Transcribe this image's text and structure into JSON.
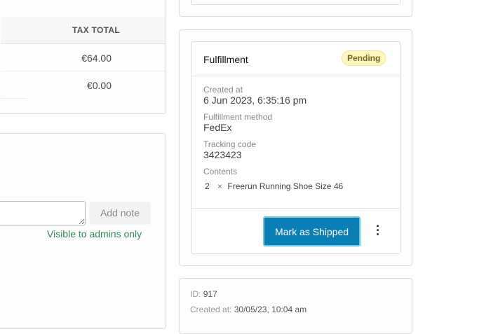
{
  "table": {
    "header_tax_total": "TAX TOTAL",
    "rows": [
      {
        "tax_total": "€64.00"
      },
      {
        "tax_total": "€0.00"
      }
    ]
  },
  "notes": {
    "textarea_value": "",
    "add_note_label": "Add note",
    "visibility_hint": "Visible to admins only"
  },
  "fulfillment": {
    "title": "Fulfillment",
    "status": "Pending",
    "created_at_label": "Created at",
    "created_at": "6 Jun 2023, 6:35:16 pm",
    "method_label": "Fulfillment method",
    "method": "FedEx",
    "tracking_label": "Tracking code",
    "tracking": "3423423",
    "contents_label": "Contents",
    "contents": [
      {
        "qty": "2",
        "times": "×",
        "name": "Freerun Running Shoe Size 46"
      }
    ],
    "mark_shipped_label": "Mark as Shipped",
    "more_icon": "vertical-ellipsis-icon"
  },
  "order_info": {
    "id_label": "ID:",
    "id": "917",
    "created_label": "Created at:",
    "created": "30/05/23, 10:04 am"
  },
  "colors": {
    "primary": "#0a7fb5",
    "success_text": "#2e8b57",
    "pending_bg": "#fdf6c3"
  }
}
